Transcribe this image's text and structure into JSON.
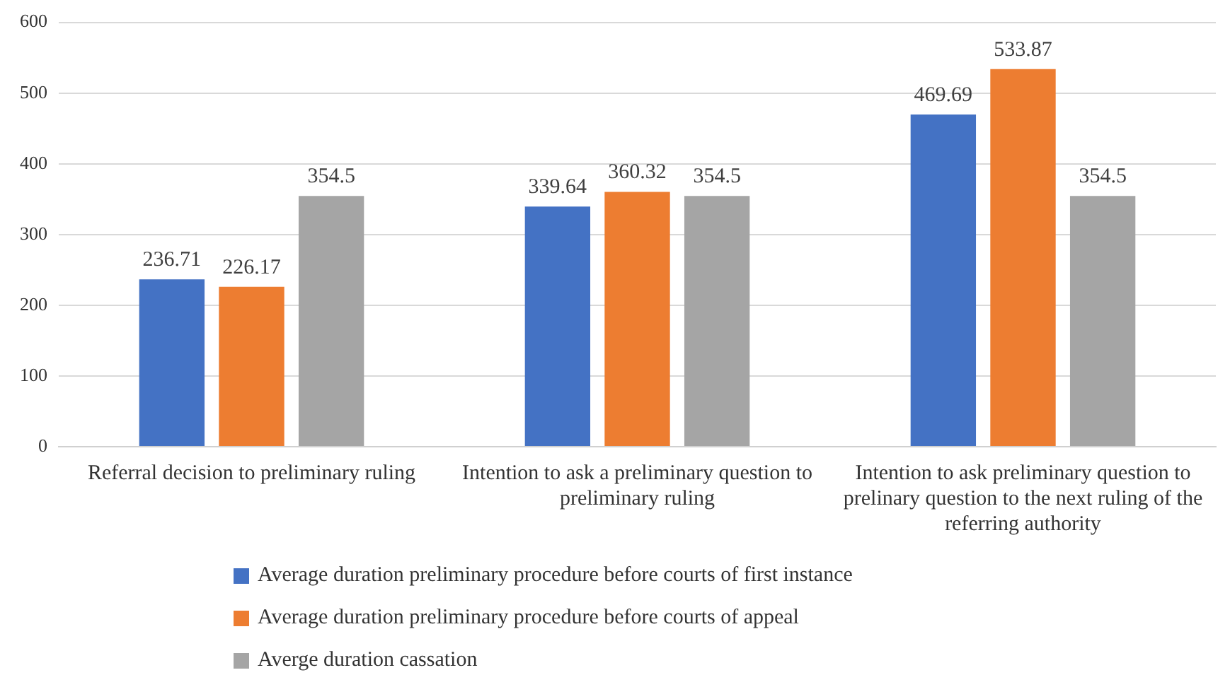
{
  "chart_data": {
    "type": "bar",
    "categories": [
      "Referral decision to preliminary ruling",
      "Intention to ask a preliminary question to preliminary ruling",
      "Intention to ask preliminary question to prelinary question to the next ruling of the referring authority"
    ],
    "series": [
      {
        "name": "Average duration preliminary procedure before courts of first instance",
        "color": "#4472c4",
        "values": [
          236.71,
          339.64,
          469.69
        ]
      },
      {
        "name": "Average duration preliminary procedure before courts of appeal",
        "color": "#ed7d31",
        "values": [
          226.17,
          360.32,
          533.87
        ]
      },
      {
        "name": "Averge duration cassation",
        "color": "#a5a5a5",
        "values": [
          354.5,
          354.5,
          354.5
        ]
      }
    ],
    "ylim": [
      0,
      600
    ],
    "yticks": [
      0,
      100,
      200,
      300,
      400,
      500,
      600
    ],
    "grid": "y",
    "legend": "bottom",
    "data_labels": true
  }
}
